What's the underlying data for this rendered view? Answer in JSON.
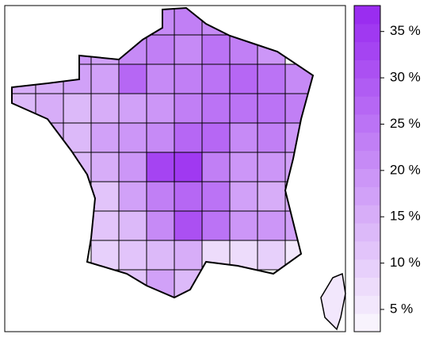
{
  "chart_data": {
    "type": "choropleth",
    "grid": [
      [
        null,
        null,
        null,
        null,
        null,
        22,
        24,
        22,
        null,
        null,
        null,
        null
      ],
      [
        null,
        null,
        20,
        18,
        21,
        23,
        22,
        25,
        24,
        20,
        null,
        null
      ],
      [
        15,
        16,
        17,
        18,
        28,
        22,
        24,
        26,
        27,
        25,
        22,
        null
      ],
      [
        14,
        15,
        14,
        16,
        18,
        20,
        24,
        26,
        25,
        26,
        23,
        null
      ],
      [
        null,
        15,
        14,
        17,
        19,
        22,
        28,
        27,
        22,
        24,
        20,
        null
      ],
      [
        null,
        null,
        13,
        16,
        20,
        32,
        35,
        24,
        20,
        19,
        17,
        null
      ],
      [
        null,
        null,
        null,
        12,
        18,
        24,
        28,
        26,
        18,
        16,
        15,
        null
      ],
      [
        null,
        null,
        null,
        11,
        14,
        22,
        30,
        25,
        19,
        20,
        18,
        null
      ],
      [
        null,
        null,
        null,
        10,
        12,
        13,
        16,
        8,
        7,
        9,
        5,
        null
      ],
      [
        null,
        null,
        null,
        null,
        12,
        18,
        14,
        5,
        null,
        null,
        null,
        null
      ]
    ],
    "corsica": 6,
    "clim": [
      2.6,
      37.8
    ],
    "cticks": [
      {
        "value": 5,
        "label": "5 %"
      },
      {
        "value": 10,
        "label": "10 %"
      },
      {
        "value": 15,
        "label": "15 %"
      },
      {
        "value": 20,
        "label": "20 %"
      },
      {
        "value": 25,
        "label": "25 %"
      },
      {
        "value": 30,
        "label": "30 %"
      },
      {
        "value": 35,
        "label": "35 %"
      }
    ],
    "color_low": "#f8f3fd",
    "color_high": "#9a2df0",
    "color_steps": 18
  }
}
